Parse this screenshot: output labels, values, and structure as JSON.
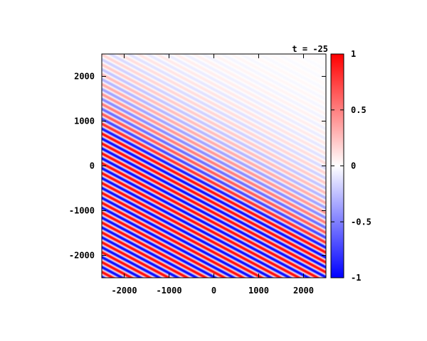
{
  "chart_data": {
    "type": "heatmap",
    "title": "t = -25",
    "xlabel": "",
    "ylabel": "",
    "xlim": [
      -2500,
      2500
    ],
    "ylim": [
      -2500,
      2500
    ],
    "x_ticks": [
      "-2000",
      "-1000",
      "0",
      "1000",
      "2000"
    ],
    "y_ticks": [
      "2000",
      "1000",
      "0",
      "-1000",
      "-2000"
    ],
    "colorbar": {
      "range": [
        -1,
        1
      ],
      "ticks": [
        "1",
        "0.5",
        "0",
        "-0.5",
        "-1"
      ],
      "colors": {
        "low": "#0000ff",
        "mid": "#ffffff",
        "high": "#ff0000"
      }
    },
    "field": {
      "description": "plane wave with decaying amplitude",
      "wave_direction_deg": 62,
      "wavelength": 195,
      "amplitude_front_offset": 1300,
      "amplitude_decay_length": 850,
      "amplitude_gain": 2.6
    },
    "grid": false
  }
}
